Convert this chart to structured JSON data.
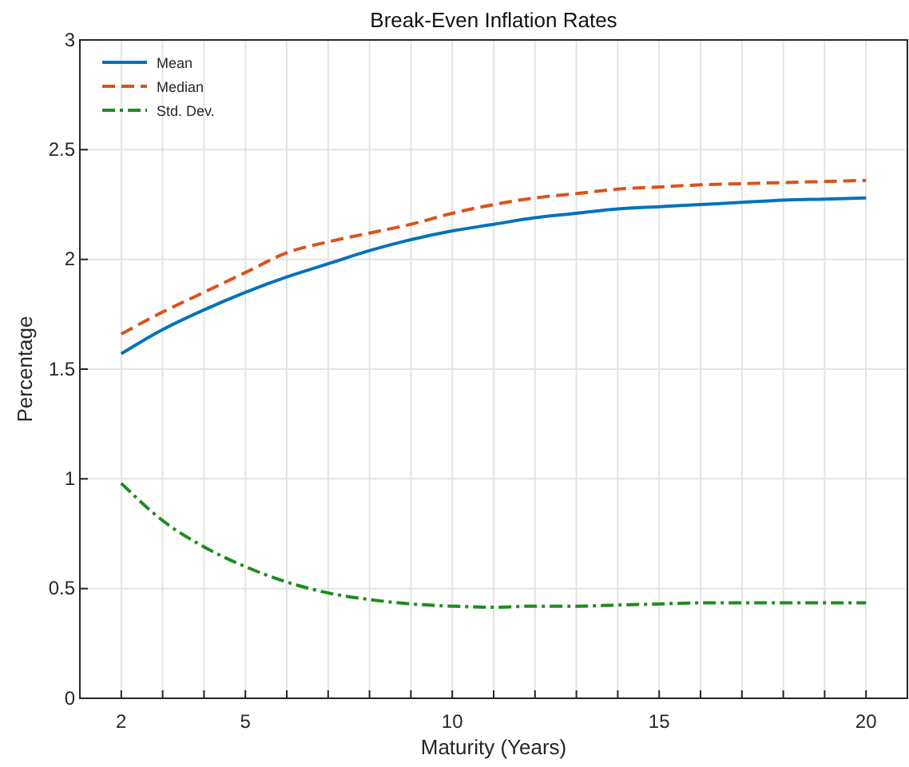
{
  "chart_data": {
    "type": "line",
    "title": "Break-Even Inflation Rates",
    "xlabel": "Maturity (Years)",
    "ylabel": "Percentage",
    "x": [
      2,
      3,
      4,
      5,
      6,
      7,
      8,
      9,
      10,
      11,
      12,
      13,
      14,
      15,
      16,
      17,
      18,
      19,
      20
    ],
    "series": [
      {
        "name": "Mean",
        "color": "#0072bd",
        "line_style": "solid",
        "values": [
          1.57,
          1.68,
          1.77,
          1.85,
          1.92,
          1.98,
          2.04,
          2.09,
          2.13,
          2.16,
          2.19,
          2.21,
          2.23,
          2.24,
          2.25,
          2.26,
          2.27,
          2.275,
          2.28
        ]
      },
      {
        "name": "Median",
        "color": "#d95319",
        "line_style": "dashed",
        "values": [
          1.66,
          1.76,
          1.85,
          1.94,
          2.03,
          2.08,
          2.12,
          2.16,
          2.21,
          2.25,
          2.28,
          2.3,
          2.32,
          2.33,
          2.34,
          2.345,
          2.35,
          2.355,
          2.36
        ]
      },
      {
        "name": "Std. Dev.",
        "color": "#1e8c1e",
        "line_style": "dashdot",
        "values": [
          0.98,
          0.81,
          0.69,
          0.6,
          0.53,
          0.48,
          0.45,
          0.43,
          0.42,
          0.415,
          0.42,
          0.42,
          0.425,
          0.43,
          0.435,
          0.435,
          0.435,
          0.435,
          0.435
        ]
      }
    ],
    "xlim": [
      1,
      21
    ],
    "xticks": [
      2,
      {
        "value": 3,
        "label": null
      },
      {
        "value": 4,
        "label": null
      },
      5,
      {
        "value": 6,
        "label": null
      },
      {
        "value": 7,
        "label": null
      },
      {
        "value": 8,
        "label": null
      },
      {
        "value": 9,
        "label": null
      },
      10,
      {
        "value": 11,
        "label": null
      },
      {
        "value": 12,
        "label": null
      },
      {
        "value": 13,
        "label": null
      },
      {
        "value": 14,
        "label": null
      },
      15,
      {
        "value": 16,
        "label": null
      },
      {
        "value": 17,
        "label": null
      },
      {
        "value": 18,
        "label": null
      },
      {
        "value": 19,
        "label": null
      },
      20
    ],
    "ylim": [
      0,
      3
    ],
    "yticks": [
      0,
      0.5,
      1,
      1.5,
      2,
      2.5,
      3
    ],
    "grid": true,
    "legend": "top left"
  }
}
